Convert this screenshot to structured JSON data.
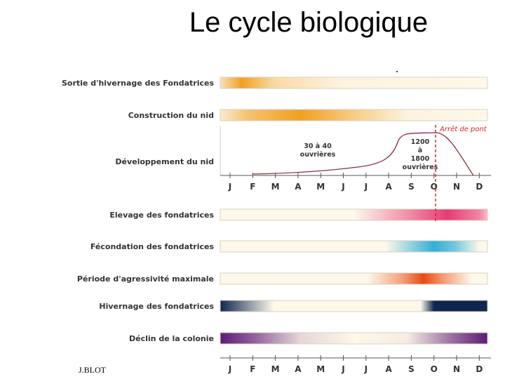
{
  "title": "Le cycle biologique",
  "author": "J.BLOT",
  "months": [
    "J",
    "F",
    "M",
    "A",
    "M",
    "J",
    "J",
    "A",
    "S",
    "O",
    "N",
    "D"
  ],
  "top_rows": [
    {
      "id": "sortie",
      "label": "Sortie d'hivernage des Fondatrices",
      "color": "#f0a020",
      "stops": [
        [
          0,
          0.25
        ],
        [
          0.08,
          1
        ],
        [
          0.2,
          0.35
        ],
        [
          0.45,
          0.05
        ],
        [
          1,
          0
        ]
      ]
    },
    {
      "id": "construction",
      "label": "Construction du nid",
      "color": "#f0a020",
      "stops": [
        [
          0,
          0.15
        ],
        [
          0.1,
          0.6
        ],
        [
          0.3,
          1
        ],
        [
          0.5,
          0.5
        ],
        [
          0.7,
          0.05
        ],
        [
          1,
          0
        ]
      ]
    }
  ],
  "development": {
    "label": "Développement du nid",
    "annotation_left": [
      "30 à 40",
      "ouvrières"
    ],
    "annotation_right": [
      "1200",
      "à",
      "1800",
      "ouvrières"
    ],
    "stop_label": "Arrêt de pont",
    "curve_color": "#8b2c3a",
    "stop_color": "#cc2a2a"
  },
  "bottom_rows": [
    {
      "id": "elevage",
      "label": "Elevage des fondatrices",
      "color": "#e83a76",
      "stops": [
        [
          0,
          0
        ],
        [
          0.5,
          0
        ],
        [
          0.7,
          0.55
        ],
        [
          0.85,
          1
        ],
        [
          0.97,
          0.6
        ],
        [
          1,
          0.3
        ]
      ]
    },
    {
      "id": "fecondation",
      "label": "Fécondation des fondatrices",
      "color": "#1aa8d4",
      "stops": [
        [
          0,
          0
        ],
        [
          0.62,
          0
        ],
        [
          0.8,
          0.9
        ],
        [
          0.88,
          0.6
        ],
        [
          0.97,
          0
        ],
        [
          1,
          0
        ]
      ]
    },
    {
      "id": "agressivite",
      "label": "Période d'agressivité maximale",
      "color": "#ea4a10",
      "stops": [
        [
          0,
          0
        ],
        [
          0.55,
          0
        ],
        [
          0.68,
          0.5
        ],
        [
          0.76,
          1
        ],
        [
          0.84,
          0.5
        ],
        [
          0.94,
          0
        ],
        [
          1,
          0
        ]
      ]
    },
    {
      "id": "hivernage",
      "label": "Hivernage des fondatrices",
      "color": "#0e2650",
      "stops": [
        [
          0,
          1
        ],
        [
          0.08,
          0.6
        ],
        [
          0.2,
          0
        ],
        [
          0.75,
          0
        ],
        [
          0.8,
          1
        ],
        [
          1,
          1
        ]
      ]
    },
    {
      "id": "declin",
      "label": "Déclin de la colonie",
      "color": "#5e1a78",
      "stops": [
        [
          0,
          1
        ],
        [
          0.12,
          0.7
        ],
        [
          0.3,
          0.15
        ],
        [
          0.5,
          0
        ],
        [
          0.7,
          0.05
        ],
        [
          0.86,
          0.6
        ],
        [
          1,
          1
        ]
      ]
    }
  ]
}
